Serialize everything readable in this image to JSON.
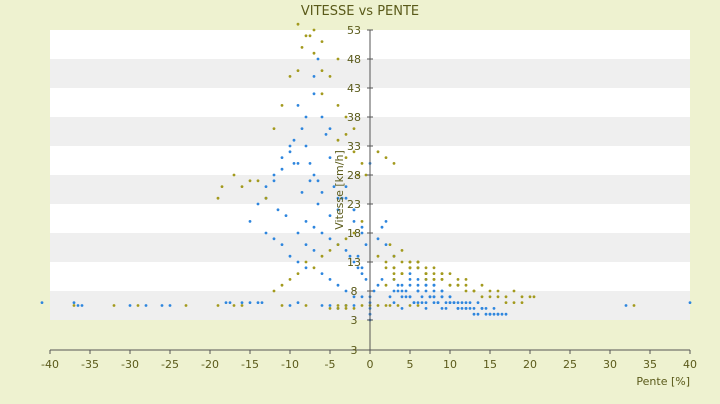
{
  "colors": {
    "background": "#eef2d0",
    "band_light": "#ffffff",
    "band_dark": "#efefef",
    "text": "#5a5a1a",
    "series_blue": "#2e86de",
    "series_olive": "#a39a1e"
  },
  "chart_data": {
    "type": "scatter",
    "title": "VITESSE vs PENTE",
    "xlabel": "Pente [%]",
    "ylabel": "Vitesse [km/h]",
    "xlim": [
      -40,
      40
    ],
    "ylim": [
      3,
      56
    ],
    "x_ticks": [
      "-40",
      "-35",
      "-30",
      "-25",
      "-20",
      "-15",
      "-10",
      "-5",
      "0",
      "5",
      "10",
      "15",
      "20",
      "25",
      "30",
      "35",
      "40"
    ],
    "y_ticks": [
      "3",
      "3",
      "8",
      "13",
      "18",
      "23",
      "28",
      "33",
      "38",
      "43",
      "48",
      "53"
    ],
    "grid": "horizontal bands",
    "legend": "none",
    "series": [
      {
        "color": "#2e86de",
        "x": [
          -9,
          -8.5,
          -8,
          -7.5,
          -7,
          -6.5,
          -6,
          -5.5,
          -5,
          -4.5,
          -4,
          -10,
          -11,
          -9.5,
          -7,
          -6,
          -5,
          -8,
          -9,
          -7.5,
          -6.5,
          -12,
          -13,
          -11.5,
          -8,
          -7,
          -6,
          -5,
          -4,
          -3,
          -2.5,
          -2,
          -1.5,
          -1,
          -0.5,
          -3.5,
          -10.5,
          -9,
          -8,
          -7,
          -14,
          -15,
          -13,
          -12,
          -11,
          -10,
          -9,
          -8,
          -6,
          -5,
          -4,
          -3,
          -2,
          -1,
          0,
          0,
          0,
          0,
          0,
          0.5,
          1,
          1.5,
          -1,
          -2,
          -3,
          -7,
          -6.5,
          -8.5,
          -9.5,
          -10,
          -11,
          -12,
          -13,
          -5,
          -4,
          -3,
          -2,
          -1,
          -0.5,
          3,
          3.5,
          4,
          4.5,
          5,
          5.5,
          6,
          6.5,
          7,
          7.5,
          8,
          8.5,
          9,
          9.5,
          10,
          10.5,
          11,
          11.5,
          12,
          12.5,
          13,
          13.5,
          14,
          14.5,
          15,
          15.5,
          16,
          16.5,
          17,
          3,
          4,
          5,
          6,
          7,
          8,
          9,
          10,
          11,
          12,
          13,
          14,
          15,
          16,
          2.5,
          3.5,
          4.5,
          5.5,
          6.5,
          7.5,
          8.5,
          9.5,
          10.5,
          11.5,
          12.5,
          13.5,
          14.5,
          15.5,
          4,
          5,
          6,
          7,
          8,
          9,
          10,
          11,
          12,
          3,
          4,
          5,
          6,
          7,
          8,
          9,
          10,
          5,
          6,
          7,
          8,
          9,
          6,
          7,
          8,
          1,
          2,
          2,
          3,
          1.5,
          -41,
          -37,
          -36.5,
          -36,
          -30,
          -28,
          -26,
          -25,
          -18,
          -17.5,
          -16,
          -15,
          -14,
          -13.5,
          -10,
          -9,
          -6,
          -5,
          -3,
          -2,
          40,
          32,
          -1,
          -1.5,
          -2,
          0,
          -4
        ],
        "y": [
          40,
          36,
          33,
          30,
          28,
          27,
          25,
          35,
          31,
          26,
          24,
          32,
          29,
          34,
          42,
          38,
          36,
          38,
          30,
          27,
          23,
          28,
          24,
          22,
          20,
          19,
          18,
          17,
          16,
          15,
          14,
          13,
          12,
          11,
          10,
          24,
          21,
          18,
          16,
          15,
          23,
          20,
          18,
          17,
          16,
          14,
          13,
          12,
          11,
          10,
          9,
          8,
          7,
          7,
          7,
          6,
          5,
          4,
          3,
          8,
          9,
          10,
          19,
          22,
          26,
          45,
          48,
          25,
          30,
          33,
          31,
          27,
          26,
          21,
          22,
          24,
          20,
          18,
          16,
          8,
          9,
          7,
          8,
          7,
          6,
          8,
          7,
          6,
          7,
          8,
          6,
          7,
          6,
          7,
          6,
          5,
          6,
          5,
          6,
          5,
          6,
          5,
          5,
          4,
          5,
          4,
          4,
          4,
          6,
          5,
          7,
          6,
          5,
          6,
          5,
          6,
          5,
          5,
          4,
          5,
          4,
          4,
          7,
          8,
          7,
          6,
          6,
          7,
          6,
          5,
          6,
          5,
          5,
          4,
          4,
          4,
          8,
          9,
          8,
          9,
          7,
          8,
          7,
          6,
          6,
          10,
          9,
          10,
          9,
          8,
          7,
          7,
          6,
          11,
          10,
          9,
          9,
          8,
          12,
          10,
          9,
          17,
          16,
          20,
          14,
          19,
          6,
          6,
          5.5,
          5.5,
          5.5,
          5.5,
          5.5,
          5.5,
          6,
          6,
          6,
          6,
          6,
          6,
          5.5,
          6,
          5.5,
          5.5,
          5.5,
          5.5,
          6,
          5.5,
          12,
          14,
          22,
          30,
          5
        ]
      },
      {
        "color": "#a39a1e",
        "x": [
          -9,
          -7.5,
          -6,
          -5,
          -4,
          -3,
          -2,
          -1,
          -0.5,
          -8,
          -8.5,
          -10,
          -11,
          -12,
          -15,
          -16,
          -17,
          -18.5,
          -19,
          -14,
          -13,
          -5,
          -6,
          -4,
          -3,
          -2,
          -1.5,
          -7,
          -7,
          -6,
          -9,
          -4,
          -3,
          1,
          2,
          3,
          4,
          5,
          6,
          7,
          8,
          9,
          10,
          11,
          12,
          13,
          14,
          15,
          16,
          17,
          18,
          19,
          20,
          20.5,
          3,
          4,
          5,
          6,
          7,
          8,
          9,
          10,
          11,
          12,
          13,
          14,
          15,
          16,
          17,
          18,
          19,
          2,
          3,
          4,
          5,
          6,
          7,
          8,
          9,
          10,
          11,
          12,
          2,
          3,
          4,
          5,
          6,
          7,
          8,
          9,
          3,
          4,
          5,
          6,
          7,
          2.5,
          1,
          2,
          3,
          -1,
          -2,
          -3,
          -4,
          -5,
          -6,
          -7,
          -8,
          -9,
          -10,
          -11,
          -12,
          -5,
          -4,
          -3,
          -2,
          -37,
          -32,
          -29,
          -23,
          -19,
          -17,
          -16,
          -11,
          -8,
          -4,
          -3,
          -1,
          0,
          1,
          2,
          2.5,
          3.5,
          5,
          6,
          33
        ],
        "y": [
          54,
          52,
          51,
          55,
          48,
          38,
          36,
          30,
          28,
          52,
          50,
          45,
          40,
          36,
          27,
          26,
          28,
          26,
          24,
          27,
          24,
          45,
          42,
          40,
          35,
          32,
          28,
          53,
          49,
          46,
          46,
          34,
          31,
          14,
          13,
          12,
          11,
          12,
          13,
          11,
          12,
          10,
          11,
          9,
          10,
          8,
          9,
          8,
          8,
          7,
          8,
          7,
          7,
          7,
          12,
          11,
          13,
          12,
          10,
          11,
          10,
          9,
          9,
          8,
          8,
          7,
          7,
          7,
          6,
          6,
          6,
          9,
          10,
          11,
          12,
          13,
          12,
          10,
          11,
          9,
          10,
          9,
          12,
          11,
          13,
          12,
          13,
          11,
          10,
          11,
          14,
          15,
          13,
          12,
          11,
          16,
          32,
          31,
          30,
          20,
          18,
          17,
          16,
          15,
          14,
          12,
          13,
          11,
          10,
          9,
          8,
          5,
          5,
          5,
          5,
          5.5,
          5.5,
          5.5,
          5.5,
          5.5,
          5.5,
          5.5,
          5.5,
          5.5,
          5.5,
          5.5,
          5.5,
          5.5,
          5.5,
          5.5,
          5.5,
          5.5,
          5.5,
          5.5,
          5.5
        ]
      }
    ]
  }
}
